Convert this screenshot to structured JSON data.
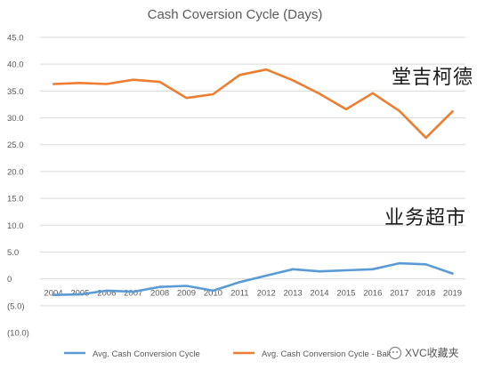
{
  "chart_data": {
    "type": "line",
    "title": "Cash Coversion Cycle (Days)",
    "xlabel": "",
    "ylabel": "",
    "categories": [
      "2004",
      "2005",
      "2006",
      "2007",
      "2008",
      "2009",
      "2010",
      "2011",
      "2012",
      "2013",
      "2014",
      "2015",
      "2016",
      "2017",
      "2018",
      "2019"
    ],
    "ylim": [
      -10,
      45
    ],
    "y_ticks": [
      45,
      40,
      35,
      30,
      25,
      20,
      15,
      10,
      5,
      0,
      -5,
      -10
    ],
    "y_tick_labels": [
      "45.0",
      "40.0",
      "35.0",
      "30.0",
      "25.0",
      "20.0",
      "15.0",
      "10.0",
      "5.0",
      "0",
      "(5.0)",
      "(10.0)"
    ],
    "grid": true,
    "legend_position": "bottom",
    "series": [
      {
        "name": "Avg. Cash Conversion Cycle",
        "color": "#5b9bd5",
        "values": [
          -3.0,
          -2.9,
          -2.2,
          -2.4,
          -1.5,
          -1.3,
          -2.2,
          -0.6,
          0.6,
          1.8,
          1.4,
          1.6,
          1.8,
          2.9,
          2.7,
          1.0
        ]
      },
      {
        "name": "Avg. Cash Conversion Cycle - Bak",
        "color": "#ed7d31",
        "values": [
          36.3,
          36.5,
          36.3,
          37.1,
          36.7,
          33.7,
          34.4,
          38.0,
          39.0,
          37.0,
          34.5,
          31.6,
          34.6,
          31.3,
          26.3,
          31.2
        ]
      }
    ],
    "annotations": [
      {
        "text": "堂吉柯德",
        "series": 1
      },
      {
        "text": "业务超市",
        "series": 0
      }
    ]
  },
  "watermark": {
    "text": "XVC收藏夹"
  }
}
